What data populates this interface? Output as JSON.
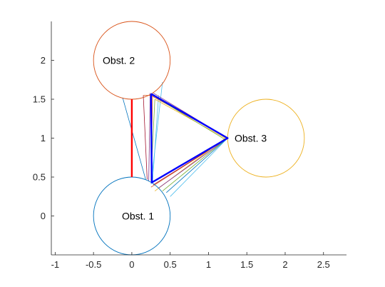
{
  "chart_data": {
    "type": "scatter",
    "xlim": [
      -1.05,
      2.8
    ],
    "ylim": [
      -0.5,
      2.5
    ],
    "x_ticks": [
      {
        "value": -1,
        "label": "-1"
      },
      {
        "value": -0.5,
        "label": "-0.5"
      },
      {
        "value": 0,
        "label": "0"
      },
      {
        "value": 0.5,
        "label": "0.5"
      },
      {
        "value": 1,
        "label": "1"
      },
      {
        "value": 1.5,
        "label": "1.5"
      },
      {
        "value": 2,
        "label": "2"
      },
      {
        "value": 2.5,
        "label": "2.5"
      }
    ],
    "y_ticks": [
      {
        "value": 0,
        "label": "0"
      },
      {
        "value": 0.5,
        "label": "0.5"
      },
      {
        "value": 1,
        "label": "1"
      },
      {
        "value": 1.5,
        "label": "1.5"
      },
      {
        "value": 2,
        "label": "2"
      }
    ],
    "grid": false,
    "axis_color": "#262626",
    "obstacles": [
      {
        "label": "Obst. 1",
        "cx": 0,
        "cy": 0,
        "r": 0.5,
        "color": "#0072BD",
        "label_x": 0.08,
        "label_y": 0
      },
      {
        "label": "Obst. 2",
        "cx": 0,
        "cy": 2,
        "r": 0.5,
        "color": "#D95319",
        "label_x": -0.17,
        "label_y": 2
      },
      {
        "label": "Obst. 3",
        "cx": 1.75,
        "cy": 1,
        "r": 0.5,
        "color": "#EDB120",
        "label_x": 1.55,
        "label_y": 1
      }
    ],
    "thin_lines": [
      {
        "color": "#4DBEEE",
        "points": [
          [
            0.4,
            1.72
          ],
          [
            0.25,
            0.41
          ]
        ]
      },
      {
        "color": "#D95319",
        "points": [
          [
            0.27,
            1.55
          ],
          [
            0.25,
            0.45
          ]
        ]
      },
      {
        "color": "#7E2F8E",
        "points": [
          [
            0.24,
            1.58
          ],
          [
            0.22,
            0.45
          ]
        ]
      },
      {
        "color": "#A2142F",
        "points": [
          [
            0.15,
            1.55
          ],
          [
            0.2,
            0.47
          ]
        ]
      },
      {
        "color": "#77AC30",
        "points": [
          [
            0.3,
            1.5
          ],
          [
            0.25,
            0.5
          ]
        ]
      },
      {
        "color": "#0072BD",
        "points": [
          [
            -0.12,
            1.52
          ],
          [
            0.18,
            0.47
          ]
        ]
      },
      {
        "color": "#4DBEEE",
        "points": [
          [
            0.35,
            1.55
          ],
          [
            0.27,
            0.43
          ]
        ]
      },
      {
        "color": "#D95319",
        "points": [
          [
            0.15,
            1.55
          ],
          [
            0.25,
            1.55
          ],
          [
            1.25,
            1.0
          ],
          [
            0.25,
            0.37
          ]
        ]
      },
      {
        "color": "#EDB120",
        "points": [
          [
            0.3,
            1.5
          ],
          [
            1.22,
            1.0
          ],
          [
            0.3,
            0.32
          ]
        ]
      },
      {
        "color": "#7E2F8E",
        "points": [
          [
            0.28,
            1.58
          ],
          [
            1.25,
            1.0
          ],
          [
            0.35,
            0.36
          ]
        ]
      },
      {
        "color": "#77AC30",
        "points": [
          [
            0.32,
            1.52
          ],
          [
            1.22,
            0.98
          ],
          [
            0.4,
            0.32
          ]
        ]
      },
      {
        "color": "#0072BD",
        "points": [
          [
            1.25,
            1.0
          ],
          [
            0.45,
            0.3
          ]
        ]
      },
      {
        "color": "#4DBEEE",
        "points": [
          [
            1.25,
            1.0
          ],
          [
            0.5,
            0.25
          ]
        ]
      },
      {
        "color": "#A2142F",
        "points": [
          [
            1.25,
            1.0
          ],
          [
            0.28,
            0.4
          ]
        ]
      }
    ],
    "red_path": {
      "color": "#FF0000",
      "points": [
        [
          0.0,
          1.5
        ],
        [
          0.0,
          0.5
        ]
      ]
    },
    "blue_path": {
      "color": "#0000FF",
      "points": [
        [
          0.25,
          1.57
        ],
        [
          1.25,
          1.0
        ],
        [
          0.26,
          0.43
        ],
        [
          0.25,
          1.57
        ]
      ]
    }
  }
}
